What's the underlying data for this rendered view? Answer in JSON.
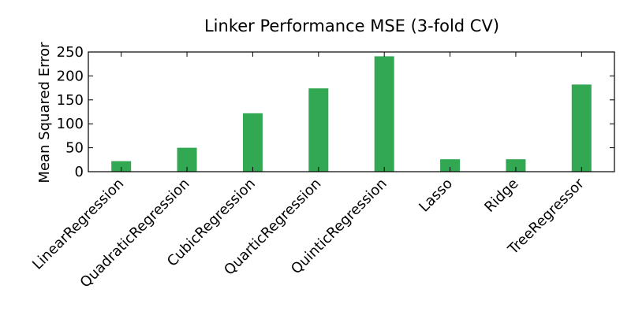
{
  "chart_data": {
    "type": "bar",
    "title": "Linker Performance MSE (3-fold CV)",
    "xlabel": "",
    "ylabel": "Mean Squared Error",
    "categories": [
      "LinearRegression",
      "QuadraticRegression",
      "CubicRegression",
      "QuarticRegression",
      "QuinticRegression",
      "Lasso",
      "Ridge",
      "TreeRegressor"
    ],
    "values": [
      22,
      50,
      122,
      174,
      241,
      26,
      26,
      182
    ],
    "ylim": [
      0,
      250
    ],
    "yticks": [
      0,
      50,
      100,
      150,
      200,
      250
    ],
    "bar_color": "#33a853",
    "grid": false,
    "legend": "none"
  }
}
